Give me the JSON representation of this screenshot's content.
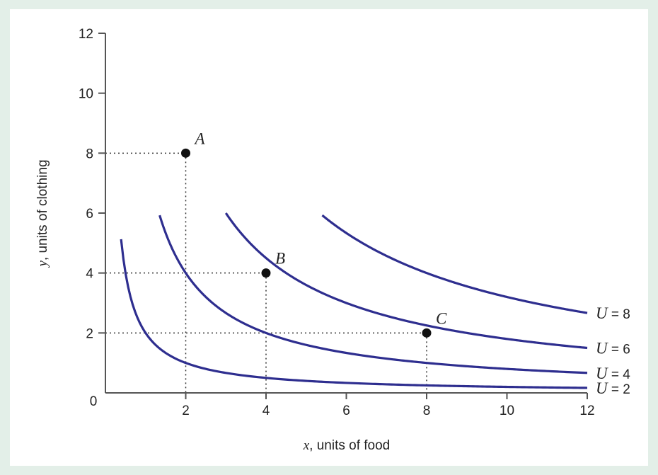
{
  "chart_data": {
    "type": "line",
    "title": "",
    "xlabel": {
      "var": "x",
      "text": ", units of food"
    },
    "ylabel": {
      "var": "y",
      "text": ", units of clothing"
    },
    "xlim": [
      0,
      12
    ],
    "ylim": [
      0,
      12
    ],
    "xticks": [
      2,
      4,
      6,
      8,
      10,
      12
    ],
    "yticks": [
      2,
      4,
      6,
      8,
      10,
      12
    ],
    "origin_label": "0",
    "grid": false,
    "colors": {
      "curve": "#2e2e8f",
      "guide": "#333333",
      "point": "#111111",
      "axis": "#555555"
    },
    "series": [
      {
        "label_var": "U",
        "label_eq": " = 2",
        "level": 2,
        "x_start": 0.39,
        "x_end": 12
      },
      {
        "label_var": "U",
        "label_eq": " = 4",
        "level": 4,
        "x_start": 1.35,
        "x_end": 12
      },
      {
        "label_var": "U",
        "label_eq": " = 6",
        "level": 6,
        "x_start": 3.0,
        "x_end": 12
      },
      {
        "label_var": "U",
        "label_eq": " = 8",
        "level": 8,
        "x_start": 5.4,
        "x_end": 12
      }
    ],
    "points": [
      {
        "label": "A",
        "x": 2,
        "y": 8
      },
      {
        "label": "B",
        "x": 4,
        "y": 4
      },
      {
        "label": "C",
        "x": 8,
        "y": 2
      }
    ]
  }
}
